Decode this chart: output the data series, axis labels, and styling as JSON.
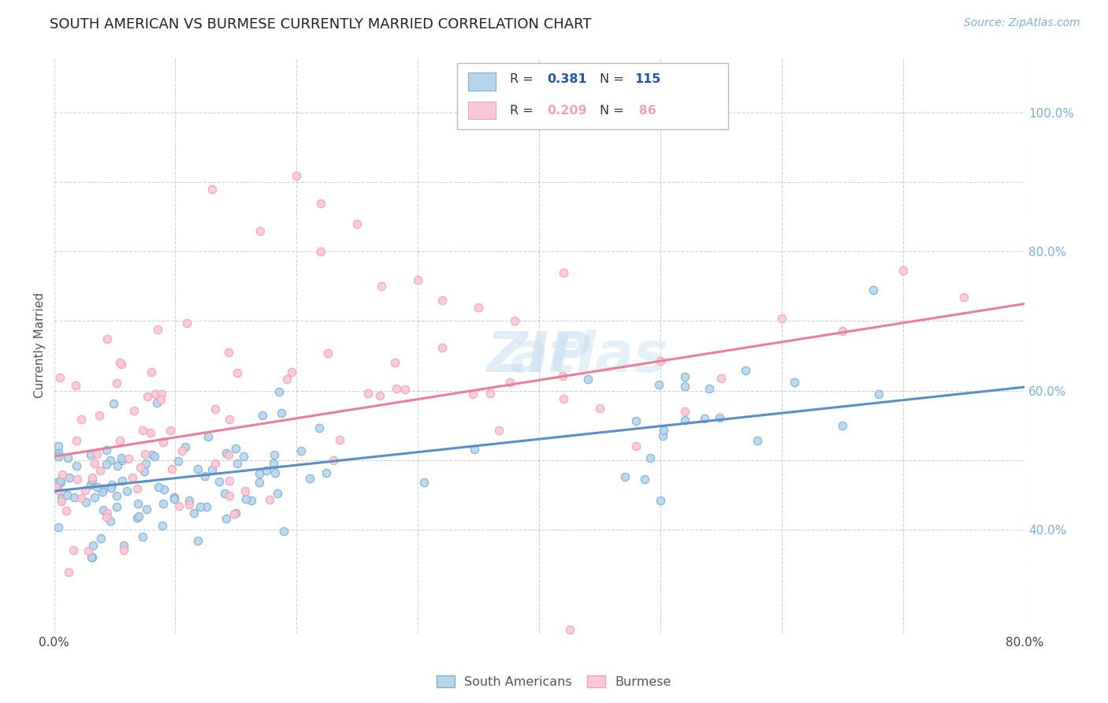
{
  "title": "SOUTH AMERICAN VS BURMESE CURRENTLY MARRIED CORRELATION CHART",
  "source": "Source: ZipAtlas.com",
  "ylabel": "Currently Married",
  "watermark": "ZIPatlas",
  "xlim": [
    0.0,
    0.8
  ],
  "ylim": [
    0.25,
    1.08
  ],
  "xticks": [
    0.0,
    0.1,
    0.2,
    0.3,
    0.4,
    0.5,
    0.6,
    0.7,
    0.8
  ],
  "xtick_labels": [
    "0.0%",
    "",
    "",
    "",
    "",
    "",
    "",
    "",
    "80.0%"
  ],
  "yticks_right": [
    0.4,
    0.5,
    0.6,
    0.7,
    0.8,
    0.9,
    1.0
  ],
  "ytick_labels_right": [
    "40.0%",
    "",
    "60.0%",
    "",
    "80.0%",
    "",
    "100.0%"
  ],
  "blue_color": "#7bafd4",
  "pink_color": "#f4a0b5",
  "blue_line_color": "#5b8ec4",
  "pink_line_color": "#e87f9a",
  "blue_scatter_face": "#b8d4ea",
  "pink_scatter_face": "#f9c8d5",
  "blue_scatter_edge": "#7bafd4",
  "pink_scatter_edge": "#f4a0b5",
  "R_blue": 0.381,
  "N_blue": 115,
  "R_pink": 0.209,
  "N_pink": 86,
  "blue_trend_x": [
    0.0,
    0.8
  ],
  "blue_trend_y": [
    0.455,
    0.605
  ],
  "pink_trend_x": [
    0.0,
    0.8
  ],
  "pink_trend_y": [
    0.505,
    0.725
  ],
  "background_color": "#ffffff",
  "grid_color": "#cccccc",
  "title_fontsize": 13,
  "axis_label_fontsize": 11,
  "tick_fontsize": 11,
  "source_fontsize": 10,
  "legend_text_color": "#2255aa",
  "legend_label_color": "#333333"
}
